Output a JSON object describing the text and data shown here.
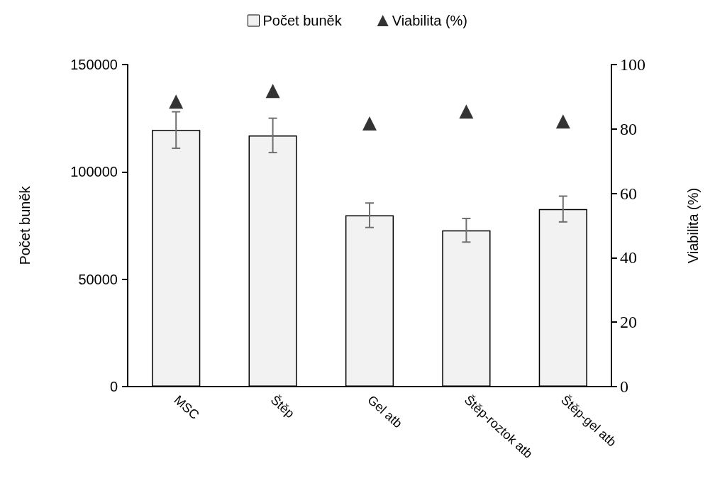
{
  "chart_data": {
    "type": "bar",
    "ylabel": "Počet buněk",
    "y2label": "Viabilita (%)",
    "categories": [
      "MSC",
      "Štěp",
      "Gel atb",
      "Štěp-roztok atb",
      "Štěp-gel atb"
    ],
    "series": [
      {
        "name": "Počet buněk",
        "color": "#f2f2f2",
        "values": [
          119500,
          117000,
          79800,
          72800,
          82700
        ],
        "errors": [
          8500,
          8000,
          5700,
          5500,
          6000
        ]
      },
      {
        "name": "Viabilita (%)",
        "type": "scatter",
        "axis": "y2",
        "color": "#000000",
        "marker": "triangle",
        "values": [
          88.5,
          91.8,
          81.7,
          85.4,
          82.3
        ]
      }
    ],
    "ylim": [
      0,
      150000
    ],
    "yticks": [
      0,
      50000,
      100000,
      150000
    ],
    "y2lim": [
      0,
      100
    ],
    "y2ticks": [
      0,
      20,
      40,
      60,
      80,
      100
    ],
    "legend": "top",
    "grid": false
  }
}
